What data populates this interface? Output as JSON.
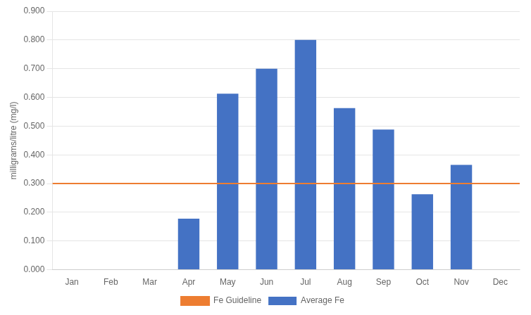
{
  "chart_data": {
    "type": "bar",
    "categories": [
      "Jan",
      "Feb",
      "Mar",
      "Apr",
      "May",
      "Jun",
      "Jul",
      "Aug",
      "Sep",
      "Oct",
      "Nov",
      "Dec"
    ],
    "series": [
      {
        "name": "Average Fe",
        "color": "#4472C4",
        "values": [
          0.0,
          0.0,
          0.0,
          0.178,
          0.613,
          0.7,
          0.8,
          0.563,
          0.488,
          0.263,
          0.365,
          0.0
        ]
      }
    ],
    "guideline": {
      "name": "Fe Guideline",
      "value": 0.3,
      "color": "#ED7D31"
    },
    "ylabel": "milligrams/litre (mg/l)",
    "ylim": [
      0.0,
      0.9
    ],
    "yticks": [
      {
        "value": 0.0,
        "label": "0.000"
      },
      {
        "value": 0.1,
        "label": "0.100"
      },
      {
        "value": 0.2,
        "label": "0.200"
      },
      {
        "value": 0.3,
        "label": "0.300"
      },
      {
        "value": 0.4,
        "label": "0.400"
      },
      {
        "value": 0.5,
        "label": "0.500"
      },
      {
        "value": 0.6,
        "label": "0.600"
      },
      {
        "value": 0.7,
        "label": "0.700"
      },
      {
        "value": 0.8,
        "label": "0.800"
      },
      {
        "value": 0.9,
        "label": "0.900"
      }
    ],
    "grid": true,
    "legend": "bottom"
  }
}
